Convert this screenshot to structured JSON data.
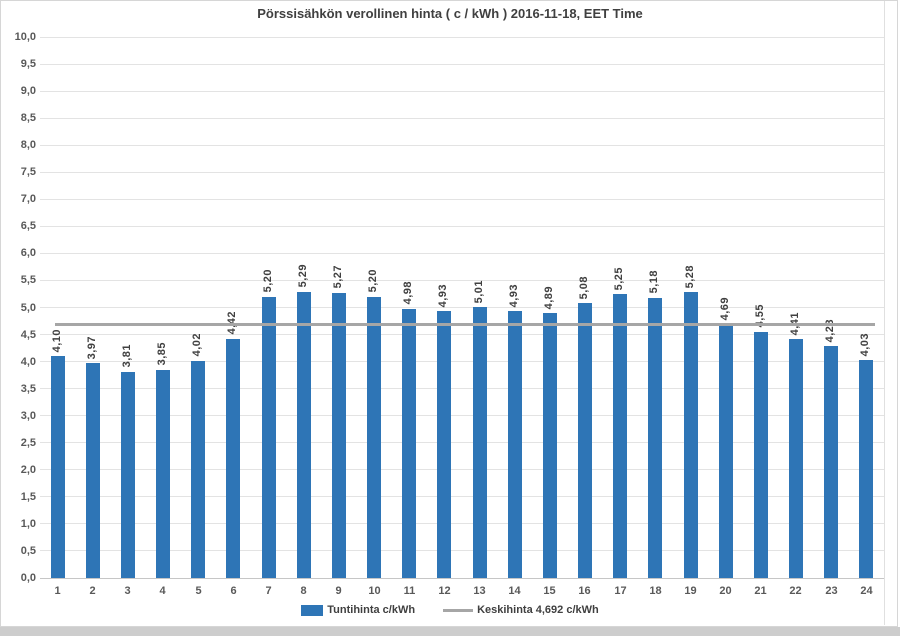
{
  "chart_data": {
    "type": "bar",
    "title": "Pörssisähkön verollinen hinta ( c / kWh ) 2016-11-18, EET Time",
    "xlabel": "",
    "ylabel": "",
    "categories": [
      "1",
      "2",
      "3",
      "4",
      "5",
      "6",
      "7",
      "8",
      "9",
      "10",
      "11",
      "12",
      "13",
      "14",
      "15",
      "16",
      "17",
      "18",
      "19",
      "20",
      "21",
      "22",
      "23",
      "24"
    ],
    "series": [
      {
        "name": "Tuntihinta c/kWh",
        "type": "bar",
        "color": "#2e75b6",
        "values": [
          4.1,
          3.97,
          3.81,
          3.85,
          4.02,
          4.42,
          5.2,
          5.29,
          5.27,
          5.2,
          4.98,
          4.93,
          5.01,
          4.93,
          4.89,
          5.08,
          5.25,
          5.18,
          5.28,
          4.69,
          4.55,
          4.41,
          4.28,
          4.03
        ],
        "labels": [
          "4,10",
          "3,97",
          "3,81",
          "3,85",
          "4,02",
          "4,42",
          "5,20",
          "5,29",
          "5,27",
          "5,20",
          "4,98",
          "4,93",
          "5,01",
          "4,93",
          "4,89",
          "5,08",
          "5,25",
          "5,18",
          "5,28",
          "4,69",
          "4,55",
          "4,41",
          "4,28",
          "4,03"
        ]
      },
      {
        "name": "Keskihinta 4,692 c/kWh",
        "type": "line",
        "color": "#a6a6a6",
        "value": 4.692
      }
    ],
    "ylim": [
      0,
      10
    ],
    "ytick_step": 0.5,
    "ytick_labels": [
      "0,0",
      "0,5",
      "1,0",
      "1,5",
      "2,0",
      "2,5",
      "3,0",
      "3,5",
      "4,0",
      "4,5",
      "5,0",
      "5,5",
      "6,0",
      "6,5",
      "7,0",
      "7,5",
      "8,0",
      "8,5",
      "9,0",
      "9,5",
      "10,0"
    ],
    "grid": true,
    "legend_position": "bottom",
    "bar_label_rotation": "vertical",
    "decimal_separator": ","
  },
  "colors": {
    "bar": "#2e75b6",
    "average_line": "#a6a6a6",
    "gridline": "#e3e3e3",
    "tick_text": "#595959",
    "label_text": "#404040",
    "frame_border": "#d6d6d6",
    "bottom_strip": "#cdcdcd"
  }
}
